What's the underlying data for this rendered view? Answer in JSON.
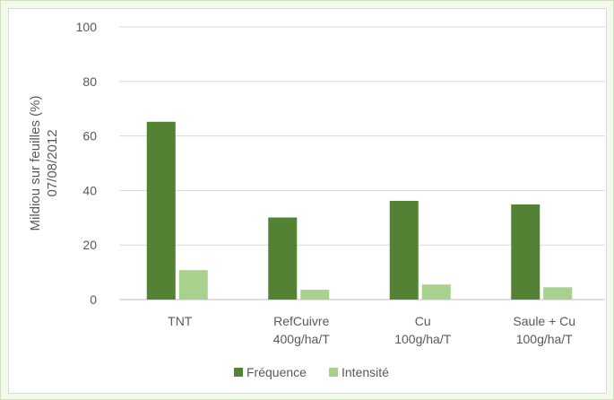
{
  "chart_data": {
    "type": "bar",
    "categories": [
      [
        "TNT"
      ],
      [
        "RefCuivre",
        "400g/ha/T"
      ],
      [
        "Cu",
        "100g/ha/T"
      ],
      [
        "Saule + Cu",
        "100g/ha/T"
      ]
    ],
    "series": [
      {
        "name": "Fréquence",
        "values": [
          65.2,
          30.1,
          36.2,
          34.9
        ],
        "color": "#548235"
      },
      {
        "name": "Intensité",
        "values": [
          10.8,
          3.6,
          5.5,
          4.5
        ],
        "color": "#a9d18e"
      }
    ],
    "ylabel": [
      "Mildiou sur feuilles (%)",
      "07/08/2012"
    ],
    "ylim": [
      0,
      100
    ],
    "yticks": [
      0,
      20,
      40,
      60,
      80,
      100
    ],
    "grid": true,
    "legend": "bottom"
  }
}
